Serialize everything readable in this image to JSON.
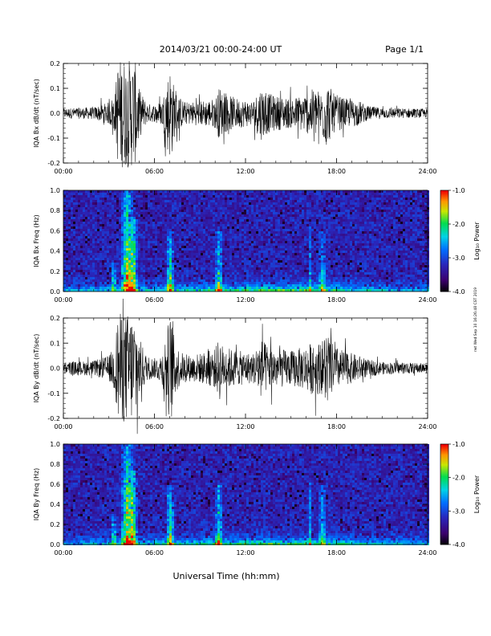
{
  "header": {
    "title": "2014/03/21  00:00-24:00 UT",
    "page": "Page 1/1"
  },
  "footer": {
    "xlabel": "Universal Time (hh:mm)"
  },
  "side_stamp": "rwt Wed Sep 10 16:26:48 CST 2019",
  "chart_data": [
    {
      "type": "line",
      "name": "bx-waveform",
      "ylabel": "IQA Bx dB/dt (nT/sec)",
      "xlim": [
        0,
        24
      ],
      "ylim": [
        -0.2,
        0.2
      ],
      "yticks": [
        -0.2,
        -0.1,
        0.0,
        0.1,
        0.2
      ],
      "yticklabels": [
        "-0.2",
        "-0.1",
        "0.0",
        "0.1",
        "0.2"
      ],
      "xticks": [
        0,
        6,
        12,
        18,
        24
      ],
      "xticklabels": [
        "00:00",
        "06:00",
        "12:00",
        "18:00",
        "24:00"
      ],
      "envelope": {
        "x_hours": [
          0,
          2,
          3,
          3.4,
          3.6,
          4.0,
          4.3,
          4.5,
          4.8,
          5.0,
          5.5,
          6.0,
          6.5,
          6.9,
          7.1,
          7.3,
          7.6,
          8.0,
          9.0,
          10.0,
          10.3,
          10.5,
          11.0,
          11.5,
          12.5,
          13.0,
          13.5,
          14.0,
          15.0,
          16.0,
          16.5,
          17.0,
          17.3,
          17.8,
          18.5,
          19.5,
          20.0,
          21.0,
          24.0
        ],
        "amplitude": [
          0.02,
          0.025,
          0.045,
          0.08,
          0.22,
          0.22,
          0.22,
          0.22,
          0.2,
          0.1,
          0.04,
          0.035,
          0.05,
          0.16,
          0.2,
          0.1,
          0.07,
          0.045,
          0.05,
          0.06,
          0.11,
          0.08,
          0.07,
          0.06,
          0.05,
          0.11,
          0.08,
          0.07,
          0.06,
          0.08,
          0.1,
          0.09,
          0.14,
          0.08,
          0.06,
          0.05,
          0.03,
          0.022,
          0.018
        ]
      }
    },
    {
      "type": "heatmap",
      "name": "bx-spectrogram",
      "ylabel": "IQA Bx Freq (Hz)",
      "xlim": [
        0,
        24
      ],
      "ylim": [
        0.0,
        1.0
      ],
      "yticks": [
        0.0,
        0.2,
        0.4,
        0.6,
        0.8,
        1.0
      ],
      "yticklabels": [
        "0.0",
        "0.2",
        "0.4",
        "0.6",
        "0.8",
        "1.0"
      ],
      "xticks": [
        0,
        6,
        12,
        18,
        24
      ],
      "xticklabels": [
        "00:00",
        "06:00",
        "12:00",
        "18:00",
        "24:00"
      ],
      "colorbar": {
        "label": "Log₁₀ Power",
        "range": [
          -4.0,
          -1.0
        ],
        "ticks": [
          -4.0,
          -3.0,
          -2.0,
          -1.0
        ],
        "ticklabels": [
          "-4.0",
          "-3.0",
          "-2.0",
          "-1.0"
        ]
      },
      "features": [
        {
          "x_hours": 3.3,
          "width_h": 0.25,
          "fmax": 0.3,
          "strength": 0.5
        },
        {
          "x_hours": 4.2,
          "width_h": 0.5,
          "fmax": 1.0,
          "strength": 0.85
        },
        {
          "x_hours": 4.6,
          "width_h": 0.3,
          "fmax": 0.75,
          "strength": 0.7
        },
        {
          "x_hours": 7.0,
          "width_h": 0.3,
          "fmax": 0.6,
          "strength": 0.65
        },
        {
          "x_hours": 10.2,
          "width_h": 0.3,
          "fmax": 0.6,
          "strength": 0.55
        },
        {
          "x_hours": 16.2,
          "width_h": 0.15,
          "fmax": 0.65,
          "strength": 0.35
        },
        {
          "x_hours": 17.0,
          "width_h": 0.3,
          "fmax": 0.6,
          "strength": 0.4
        }
      ]
    },
    {
      "type": "line",
      "name": "by-waveform",
      "ylabel": "IQA By dB/dt (nT/sec)",
      "xlim": [
        0,
        24
      ],
      "ylim": [
        -0.2,
        0.2
      ],
      "yticks": [
        -0.2,
        -0.1,
        0.0,
        0.1,
        0.2
      ],
      "yticklabels": [
        "-0.2",
        "-0.1",
        "0.0",
        "0.1",
        "0.2"
      ],
      "xticks": [
        0,
        6,
        12,
        18,
        24
      ],
      "xticklabels": [
        "00:00",
        "06:00",
        "12:00",
        "18:00",
        "24:00"
      ],
      "envelope": {
        "x_hours": [
          0,
          2,
          3,
          3.4,
          3.6,
          4.0,
          4.3,
          4.5,
          4.8,
          5.0,
          5.5,
          6.0,
          6.5,
          6.9,
          7.1,
          7.3,
          7.6,
          8.0,
          9.0,
          10.0,
          10.3,
          10.5,
          11.0,
          11.5,
          12.5,
          13.0,
          13.5,
          14.0,
          15.0,
          16.0,
          16.5,
          17.0,
          17.3,
          17.8,
          18.5,
          19.5,
          20.0,
          21.0,
          24.0
        ],
        "amplitude": [
          0.025,
          0.03,
          0.05,
          0.1,
          0.22,
          0.22,
          0.22,
          0.22,
          0.22,
          0.12,
          0.05,
          0.04,
          0.06,
          0.18,
          0.22,
          0.12,
          0.08,
          0.05,
          0.06,
          0.08,
          0.13,
          0.09,
          0.08,
          0.07,
          0.06,
          0.12,
          0.09,
          0.08,
          0.07,
          0.09,
          0.11,
          0.1,
          0.16,
          0.09,
          0.07,
          0.05,
          0.035,
          0.025,
          0.02
        ]
      }
    },
    {
      "type": "heatmap",
      "name": "by-spectrogram",
      "ylabel": "IQA By Freq (Hz)",
      "xlim": [
        0,
        24
      ],
      "ylim": [
        0.0,
        1.0
      ],
      "yticks": [
        0.0,
        0.2,
        0.4,
        0.6,
        0.8,
        1.0
      ],
      "yticklabels": [
        "0.0",
        "0.2",
        "0.4",
        "0.6",
        "0.8",
        "1.0"
      ],
      "xticks": [
        0,
        6,
        12,
        18,
        24
      ],
      "xticklabels": [
        "00:00",
        "06:00",
        "12:00",
        "18:00",
        "24:00"
      ],
      "colorbar": {
        "label": "Log₁₀ Power",
        "range": [
          -4.0,
          -1.0
        ],
        "ticks": [
          -4.0,
          -3.0,
          -2.0,
          -1.0
        ],
        "ticklabels": [
          "-4.0",
          "-3.0",
          "-2.0",
          "-1.0"
        ]
      },
      "features": [
        {
          "x_hours": 3.3,
          "width_h": 0.25,
          "fmax": 0.3,
          "strength": 0.5
        },
        {
          "x_hours": 4.2,
          "width_h": 0.5,
          "fmax": 1.0,
          "strength": 0.85
        },
        {
          "x_hours": 4.6,
          "width_h": 0.3,
          "fmax": 0.75,
          "strength": 0.7
        },
        {
          "x_hours": 7.0,
          "width_h": 0.3,
          "fmax": 0.6,
          "strength": 0.65
        },
        {
          "x_hours": 10.2,
          "width_h": 0.3,
          "fmax": 0.6,
          "strength": 0.55
        },
        {
          "x_hours": 16.2,
          "width_h": 0.15,
          "fmax": 0.65,
          "strength": 0.35
        },
        {
          "x_hours": 17.0,
          "width_h": 0.3,
          "fmax": 0.6,
          "strength": 0.4
        }
      ]
    }
  ]
}
